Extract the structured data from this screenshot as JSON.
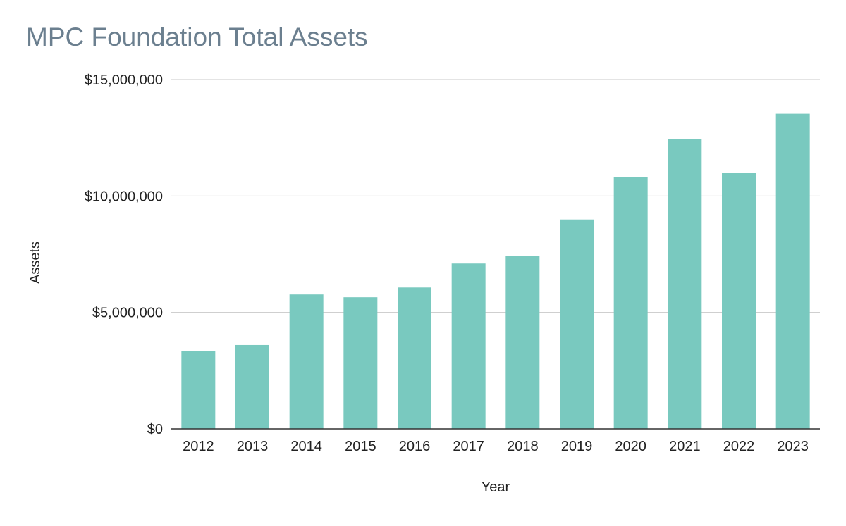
{
  "chart_data": {
    "type": "bar",
    "title": "MPC Foundation Total Assets",
    "xlabel": "Year",
    "ylabel": "Assets",
    "categories": [
      "2012",
      "2013",
      "2014",
      "2015",
      "2016",
      "2017",
      "2018",
      "2019",
      "2020",
      "2021",
      "2022",
      "2023"
    ],
    "series": [
      {
        "values": [
          3350000,
          3600000,
          5770000,
          5650000,
          6070000,
          7100000,
          7420000,
          8990000,
          10800000,
          12430000,
          10980000,
          13530000
        ]
      }
    ],
    "ylim": [
      0,
      15000000
    ],
    "yticks": [
      0,
      5000000,
      10000000,
      15000000
    ],
    "ytick_labels": [
      "$0",
      "$5,000,000",
      "$10,000,000",
      "$15,000,000"
    ],
    "grid": true,
    "legend": "none",
    "colors": {
      "bar": "#79c9bf",
      "title": "#6b7f8f",
      "gridline": "#c8c8c8",
      "baseline": "#333333"
    }
  }
}
